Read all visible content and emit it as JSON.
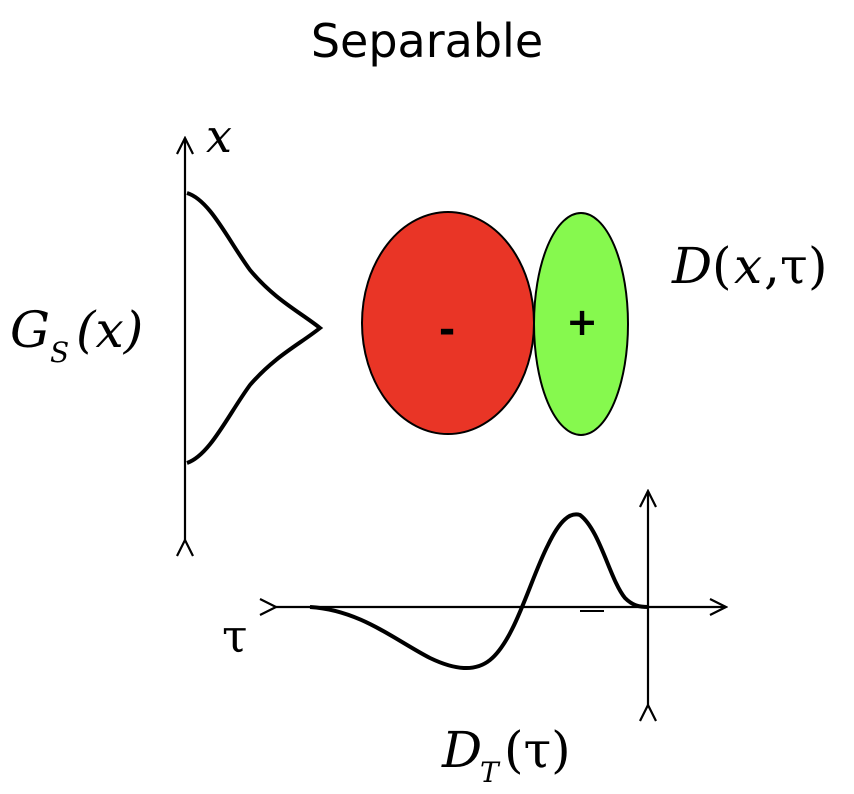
{
  "title": "Separable",
  "labels": {
    "spatial_axis": "x",
    "temporal_axis": "τ",
    "spatial_profile_main": "G",
    "spatial_profile_sub": "S",
    "spatial_profile_arg": "(x)",
    "kernel_main": "D",
    "kernel_arg_open": "(",
    "kernel_arg_x": "x",
    "kernel_arg_sep": ",",
    "kernel_arg_tau": "τ",
    "kernel_arg_close": ")",
    "temporal_profile_main": "D",
    "temporal_profile_sub": "T",
    "temporal_profile_arg": "(τ)"
  },
  "lobes": {
    "negative": {
      "sign": "-",
      "color": "#e93526"
    },
    "positive": {
      "sign": "+",
      "color": "#86f94e"
    }
  },
  "colors": {
    "stroke": "#000000"
  }
}
